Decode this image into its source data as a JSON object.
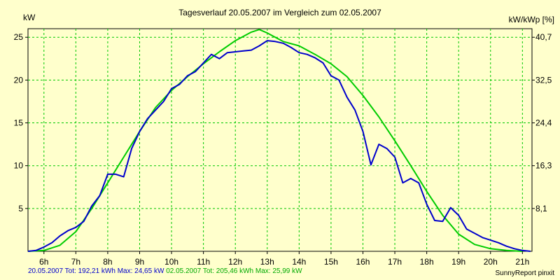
{
  "chart_data": {
    "type": "line",
    "title": "Tagesverlauf 20.05.2007 im Vergleich zum 02.05.2007",
    "ylabel_left": "kW",
    "ylabel_right": "kW/kWp [%]",
    "x_ticks": [
      "6h",
      "7h",
      "8h",
      "9h",
      "10h",
      "11h",
      "12h",
      "13h",
      "14h",
      "15h",
      "16h",
      "17h",
      "18h",
      "19h",
      "20h",
      "21h"
    ],
    "y_ticks_left": [
      "5",
      "10",
      "15",
      "20",
      "25"
    ],
    "y_ticks_right": [
      "8,1",
      "16,3",
      "24,4",
      "32,5",
      "40,7"
    ],
    "xlim": [
      5.5,
      21.3
    ],
    "ylim": [
      0,
      26
    ],
    "grid": true,
    "series": [
      {
        "name": "20.05.2007",
        "color": "#0000cc",
        "points": [
          [
            5.5,
            0
          ],
          [
            5.75,
            0.1
          ],
          [
            6,
            0.5
          ],
          [
            6.25,
            1
          ],
          [
            6.5,
            1.8
          ],
          [
            6.75,
            2.4
          ],
          [
            7,
            2.8
          ],
          [
            7.25,
            3.5
          ],
          [
            7.5,
            5.3
          ],
          [
            7.75,
            6.5
          ],
          [
            8,
            9
          ],
          [
            8.25,
            9
          ],
          [
            8.5,
            8.7
          ],
          [
            8.75,
            12
          ],
          [
            9,
            14
          ],
          [
            9.25,
            15.5
          ],
          [
            9.5,
            16.5
          ],
          [
            9.75,
            17.5
          ],
          [
            10,
            19
          ],
          [
            10.25,
            19.5
          ],
          [
            10.5,
            20.5
          ],
          [
            10.75,
            21
          ],
          [
            11,
            22
          ],
          [
            11.25,
            23
          ],
          [
            11.5,
            22.5
          ],
          [
            11.75,
            23.2
          ],
          [
            12,
            23.3
          ],
          [
            12.25,
            23.4
          ],
          [
            12.5,
            23.5
          ],
          [
            12.75,
            24
          ],
          [
            13,
            24.6
          ],
          [
            13.25,
            24.5
          ],
          [
            13.5,
            24.3
          ],
          [
            13.75,
            23.8
          ],
          [
            14,
            23.2
          ],
          [
            14.25,
            23
          ],
          [
            14.5,
            22.6
          ],
          [
            14.75,
            22
          ],
          [
            15,
            20.5
          ],
          [
            15.25,
            20
          ],
          [
            15.5,
            18
          ],
          [
            15.75,
            16.5
          ],
          [
            16,
            14
          ],
          [
            16.25,
            10.1
          ],
          [
            16.5,
            12.5
          ],
          [
            16.75,
            12
          ],
          [
            17,
            11
          ],
          [
            17.25,
            8
          ],
          [
            17.5,
            8.5
          ],
          [
            17.75,
            8
          ],
          [
            18,
            5.5
          ],
          [
            18.25,
            3.6
          ],
          [
            18.5,
            3.5
          ],
          [
            18.75,
            5.1
          ],
          [
            19,
            4.2
          ],
          [
            19.25,
            2.6
          ],
          [
            19.5,
            2.1
          ],
          [
            19.75,
            1.6
          ],
          [
            20,
            1.3
          ],
          [
            20.25,
            1
          ],
          [
            20.5,
            0.6
          ],
          [
            20.75,
            0.3
          ],
          [
            21,
            0.1
          ],
          [
            21.25,
            0
          ]
        ]
      },
      {
        "name": "02.05.2007",
        "color": "#00cc00",
        "points": [
          [
            5.5,
            0
          ],
          [
            6,
            0.1
          ],
          [
            6.5,
            0.7
          ],
          [
            7,
            2.3
          ],
          [
            7.5,
            5
          ],
          [
            8,
            8
          ],
          [
            8.5,
            11
          ],
          [
            9,
            14
          ],
          [
            9.5,
            16.8
          ],
          [
            10,
            18.8
          ],
          [
            10.5,
            20.4
          ],
          [
            11,
            21.9
          ],
          [
            11.5,
            23.3
          ],
          [
            12,
            24.6
          ],
          [
            12.5,
            25.6
          ],
          [
            12.75,
            25.9
          ],
          [
            13,
            25.5
          ],
          [
            13.25,
            25
          ],
          [
            13.5,
            24.5
          ],
          [
            14,
            24
          ],
          [
            14.5,
            23
          ],
          [
            15,
            21.9
          ],
          [
            15.5,
            20.4
          ],
          [
            16,
            18.2
          ],
          [
            16.5,
            15.7
          ],
          [
            17,
            12.9
          ],
          [
            17.5,
            10
          ],
          [
            18,
            7
          ],
          [
            18.5,
            4.2
          ],
          [
            19,
            2
          ],
          [
            19.5,
            0.8
          ],
          [
            20,
            0.3
          ],
          [
            20.5,
            0.1
          ],
          [
            21,
            0
          ]
        ]
      }
    ]
  },
  "footer": {
    "series1_label": "20.05.2007",
    "series1_stats": "Tot: 192,21 kWh Max: 24,65 kW",
    "series2_label": "02.05.2007",
    "series2_stats": "Tot: 205,46 kWh Max: 25,99 kW"
  },
  "credit": "SunnyReport pinxit"
}
